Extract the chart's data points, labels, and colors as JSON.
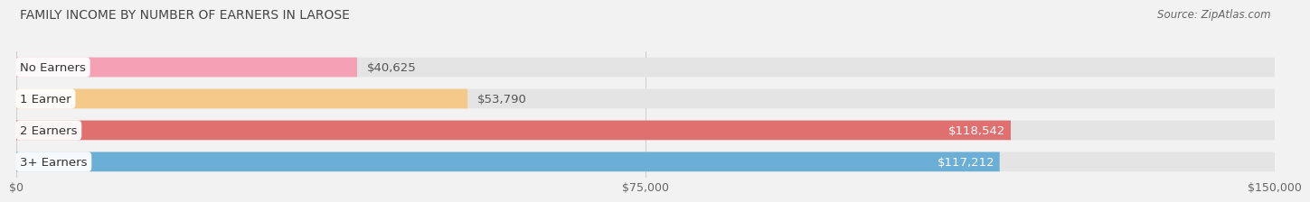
{
  "title": "FAMILY INCOME BY NUMBER OF EARNERS IN LAROSE",
  "source": "Source: ZipAtlas.com",
  "categories": [
    "No Earners",
    "1 Earner",
    "2 Earners",
    "3+ Earners"
  ],
  "values": [
    40625,
    53790,
    118542,
    117212
  ],
  "bar_colors": [
    "#f5a0b5",
    "#f5c98a",
    "#e07070",
    "#6baed6"
  ],
  "label_colors": [
    "#555555",
    "#555555",
    "#ffffff",
    "#ffffff"
  ],
  "value_inside_threshold": 0.58,
  "xlim": [
    0,
    150000
  ],
  "xticks": [
    0,
    75000,
    150000
  ],
  "xtick_labels": [
    "$0",
    "$75,000",
    "$150,000"
  ],
  "value_labels": [
    "$40,625",
    "$53,790",
    "$118,542",
    "$117,212"
  ],
  "background_color": "#f2f2f2",
  "bar_bg_color": "#e4e4e4",
  "title_fontsize": 10,
  "source_fontsize": 8.5,
  "label_fontsize": 9.5,
  "value_fontsize": 9.5,
  "tick_fontsize": 9
}
